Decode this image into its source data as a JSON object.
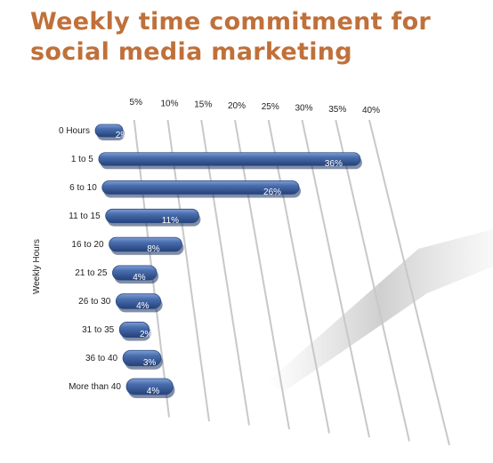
{
  "chart_data": {
    "type": "bar",
    "orientation": "horizontal",
    "title": "Weekly time commitment for social media marketing",
    "ylabel": "Weekly Hours",
    "xlabel": "",
    "xlim": [
      0,
      40
    ],
    "x_ticks": [
      "5%",
      "10%",
      "15%",
      "20%",
      "25%",
      "30%",
      "35%",
      "40%"
    ],
    "grid": true,
    "categories": [
      "0 Hours",
      "1 to 5",
      "6 to 10",
      "11 to 15",
      "16 to 20",
      "21 to 25",
      "26 to 30",
      "31 to 35",
      "36 to 40",
      "More than 40"
    ],
    "values": [
      2,
      36,
      26,
      11,
      8,
      4,
      4,
      2,
      3,
      4
    ],
    "value_labels": [
      "2%",
      "36%",
      "26%",
      "11%",
      "8%",
      "4%",
      "4%",
      "2%",
      "3%",
      "4%"
    ],
    "bar_color": "#3f62a0",
    "title_color": "#c0703a"
  }
}
